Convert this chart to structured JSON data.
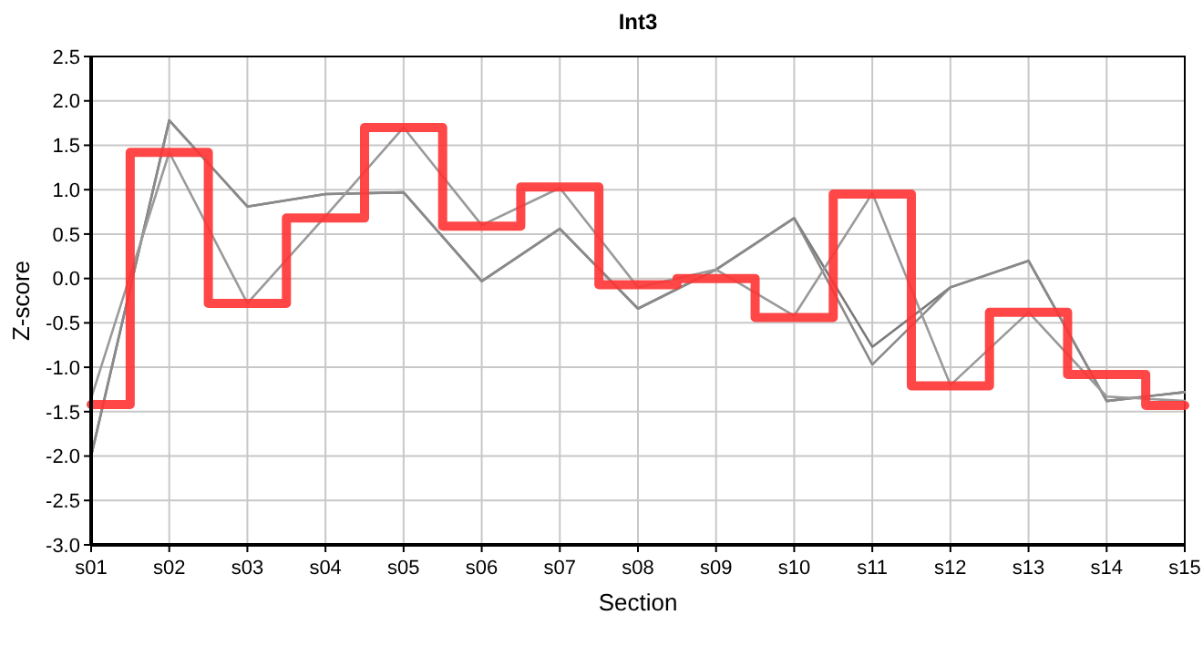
{
  "chart_data": {
    "type": "line",
    "title": "Int3",
    "xlabel": "Section",
    "ylabel": "Z-score",
    "categories": [
      "s01",
      "s02",
      "s03",
      "s04",
      "s05",
      "s06",
      "s07",
      "s08",
      "s09",
      "s10",
      "s11",
      "s12",
      "s13",
      "s14",
      "s15"
    ],
    "ylim": [
      -3,
      2.5
    ],
    "yticks": [
      {
        "value": -3,
        "label": "-3.0"
      },
      {
        "value": -2.5,
        "label": "-2.5"
      },
      {
        "value": -2,
        "label": "-2.0"
      },
      {
        "value": -1.5,
        "label": "-1.5"
      },
      {
        "value": -1,
        "label": "-1.0"
      },
      {
        "value": -0.5,
        "label": "-0.5"
      },
      {
        "value": 0,
        "label": "0.0"
      },
      {
        "value": 0.5,
        "label": "0.5"
      },
      {
        "value": 1,
        "label": "1.0"
      },
      {
        "value": 1.5,
        "label": "1.5"
      },
      {
        "value": 2,
        "label": "2.0"
      },
      {
        "value": 2.5,
        "label": "2.5"
      }
    ],
    "grid": true,
    "marker": "none",
    "series": [
      {
        "color": "#7a7a7a",
        "values": [
          -2.0,
          1.78,
          0.81,
          0.95,
          0.97,
          -0.03,
          0.56,
          -0.34,
          0.1,
          0.68,
          -0.77,
          -0.1,
          0.2,
          -1.38,
          -1.28
        ]
      },
      {
        "color": "#8a8a8a",
        "values": [
          -2.0,
          1.78,
          0.81,
          0.95,
          0.97,
          -0.03,
          0.56,
          -0.34,
          0.1,
          0.68,
          -0.97,
          -0.1,
          0.2,
          -1.38,
          -1.28
        ]
      },
      {
        "color": "#9a9a9a",
        "values": [
          -1.35,
          1.42,
          -0.28,
          0.7,
          1.7,
          0.6,
          1.02,
          -0.1,
          0.1,
          -0.42,
          0.96,
          -1.2,
          -0.38,
          -1.33,
          -1.38
        ]
      },
      {
        "type": "step",
        "color": "#ff3333",
        "values": [
          -1.42,
          1.42,
          -0.28,
          0.68,
          1.7,
          0.59,
          1.03,
          -0.07,
          0.0,
          -0.44,
          0.95,
          -1.21,
          -0.38,
          -1.08,
          -1.43
        ]
      }
    ]
  }
}
